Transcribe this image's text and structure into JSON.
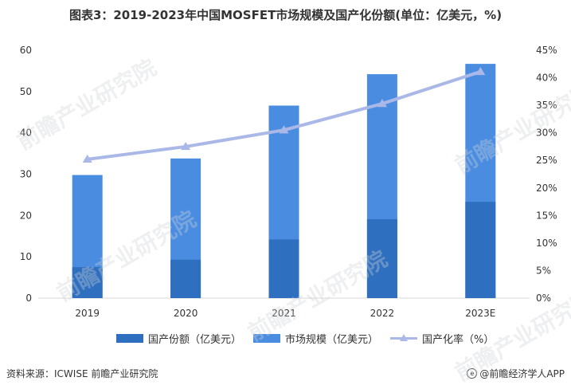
{
  "title": "图表3：2019-2023年中国MOSFET市场规模及国产化份额(单位：亿美元，%)",
  "chart_data": {
    "type": "bar",
    "categories": [
      "2019",
      "2020",
      "2021",
      "2022",
      "2023E"
    ],
    "series": [
      {
        "name": "国产份额（亿美元）",
        "type": "bar",
        "axis": "left",
        "values": [
          7.5,
          9.3,
          14.2,
          19.1,
          23.3
        ],
        "color": "#2f6fbf"
      },
      {
        "name": "市场规模（亿美元）",
        "type": "bar",
        "axis": "left",
        "values": [
          29.8,
          33.8,
          46.6,
          54.2,
          56.7
        ],
        "color": "#4a8de0"
      },
      {
        "name": "国产化率（%）",
        "type": "line",
        "axis": "right",
        "values": [
          25.2,
          27.5,
          30.5,
          35.3,
          41.1
        ],
        "color": "#aab8e8"
      }
    ],
    "y_left": {
      "ylim": [
        0,
        60
      ],
      "ticks": [
        "0",
        "10",
        "20",
        "30",
        "40",
        "50",
        "60"
      ]
    },
    "y_right": {
      "ylim": [
        0,
        45
      ],
      "ticks": [
        "0%",
        "5%",
        "10%",
        "15%",
        "20%",
        "25%",
        "30%",
        "35%",
        "40%",
        "45%"
      ]
    },
    "grid": false,
    "legend_position": "bottom"
  },
  "legend": {
    "items": [
      {
        "label": "国产份额（亿美元）"
      },
      {
        "label": "市场规模（亿美元）"
      },
      {
        "label": "国产化率（%）"
      }
    ]
  },
  "footer": {
    "source": "资料来源：ICWISE 前瞻产业研究院",
    "brand": "@前瞻经济学人APP"
  },
  "watermark_text": "前瞻产业研究院"
}
